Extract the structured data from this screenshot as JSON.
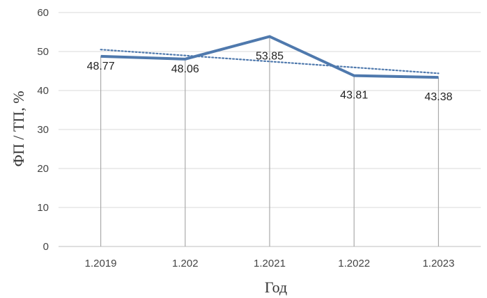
{
  "chart_data": {
    "type": "line",
    "categories": [
      "1.2019",
      "1.202",
      "1.2021",
      "1.2022",
      "1.2023"
    ],
    "series": [
      {
        "values": [
          48.77,
          48.06,
          53.85,
          43.81,
          43.38
        ],
        "data_labels": [
          "48.77",
          "48.06",
          "53.85",
          "43.81",
          "43.38"
        ],
        "color": "#4f79ad",
        "style": "solid"
      }
    ],
    "trendline": {
      "type": "linear",
      "start": 50.5,
      "end": 44.4,
      "color": "#4f79ad",
      "style": "dotted"
    },
    "xlabel": "Год",
    "ylabel": "ФП / ТП, %",
    "ylim": [
      0,
      60
    ],
    "yticks": [
      0,
      10,
      20,
      30,
      40,
      50,
      60
    ],
    "grid": "horizontal",
    "drop_lines": true,
    "colors": {
      "grid": "#d9d9d9",
      "drop_line": "#aaaaaa",
      "axis": "#bfbfbf"
    }
  }
}
